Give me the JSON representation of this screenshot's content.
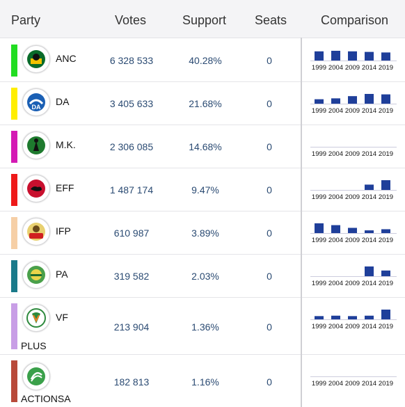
{
  "header": {
    "party": "Party",
    "votes": "Votes",
    "support": "Support",
    "seats": "Seats",
    "comparison": "Comparison"
  },
  "comparison_years": [
    "1999",
    "2004",
    "2009",
    "2014",
    "2019"
  ],
  "bar_color": "#1f3f9a",
  "parties": [
    {
      "name": "ANC",
      "name_line2": "",
      "votes": "6 328 533",
      "support": "40.28%",
      "seats": "0",
      "color": "#22dd22",
      "logo_icon": "anc-logo-icon",
      "history": [
        66,
        70,
        66,
        62,
        58
      ]
    },
    {
      "name": "DA",
      "name_line2": "",
      "votes": "3 405 633",
      "support": "21.68%",
      "seats": "0",
      "color": "#ffee00",
      "logo_icon": "da-logo-icon",
      "history": [
        10,
        12,
        17,
        22,
        21
      ]
    },
    {
      "name": "M.K.",
      "name_line2": "",
      "votes": "2 306 085",
      "support": "14.68%",
      "seats": "0",
      "color": "#d41ab4",
      "logo_icon": "mk-logo-icon",
      "history": [
        0,
        0,
        0,
        0,
        0
      ]
    },
    {
      "name": "EFF",
      "name_line2": "",
      "votes": "1 487 174",
      "support": "9.47%",
      "seats": "0",
      "color": "#ee1a1a",
      "logo_icon": "eff-logo-icon",
      "history": [
        0,
        0,
        0,
        6,
        11
      ]
    },
    {
      "name": "IFP",
      "name_line2": "",
      "votes": "610 987",
      "support": "3.89%",
      "seats": "0",
      "color": "#f6cfa6",
      "logo_icon": "ifp-logo-icon",
      "history": [
        8.6,
        7,
        4.6,
        2.4,
        3.4
      ]
    },
    {
      "name": "PA",
      "name_line2": "",
      "votes": "319 582",
      "support": "2.03%",
      "seats": "0",
      "color": "#1a7a8a",
      "logo_icon": "pa-logo-icon",
      "history": [
        0,
        0,
        0,
        2.4,
        1.4
      ]
    },
    {
      "name": "VF",
      "name_line2": "PLUS",
      "votes": "213 904",
      "support": "1.36%",
      "seats": "0",
      "color": "#c89ee6",
      "logo_icon": "vfplus-logo-icon",
      "history": [
        0.8,
        0.9,
        0.8,
        0.9,
        2.4
      ]
    },
    {
      "name": "",
      "name_line2": "ACTIONSA",
      "votes": "182 813",
      "support": "1.16%",
      "seats": "0",
      "color": "#b84a3a",
      "logo_icon": "actionsa-logo-icon",
      "history": [
        0,
        0,
        0,
        0,
        0
      ]
    }
  ]
}
